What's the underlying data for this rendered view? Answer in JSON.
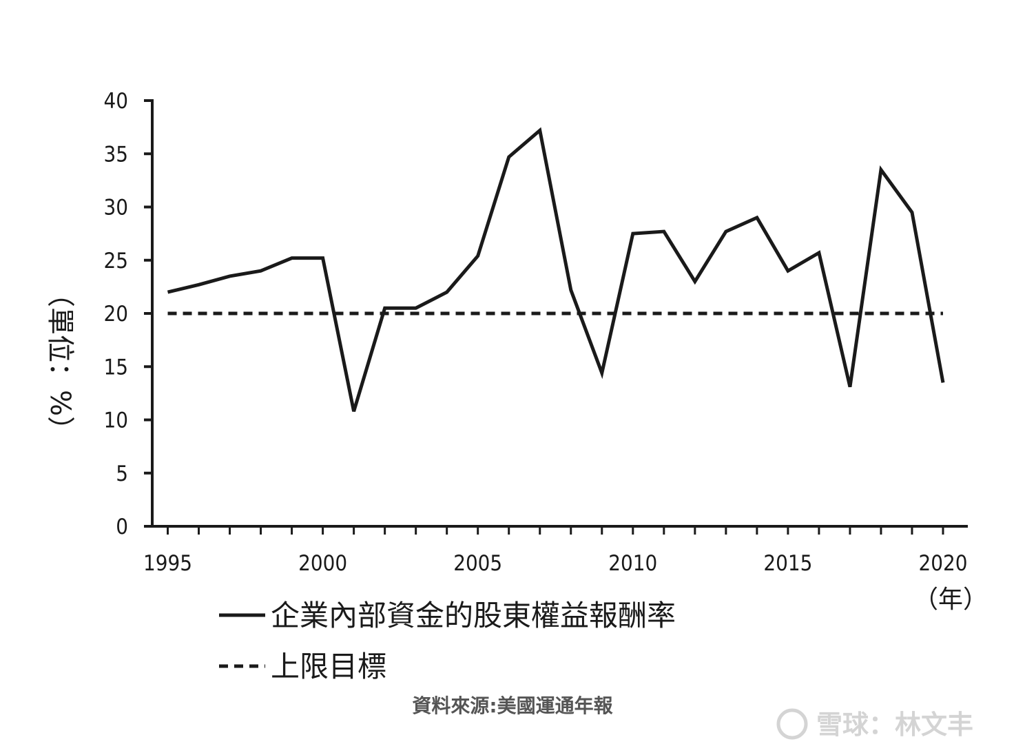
{
  "chart_data": {
    "type": "line",
    "x": [
      1995,
      1996,
      1997,
      1998,
      1999,
      2000,
      2001,
      2002,
      2003,
      2004,
      2005,
      2006,
      2007,
      2008,
      2009,
      2010,
      2011,
      2012,
      2013,
      2014,
      2015,
      2016,
      2017,
      2018,
      2019,
      2020
    ],
    "series": [
      {
        "name": "企業內部資金的股東權益報酬率",
        "style": "solid",
        "color": "#1a1a1a",
        "values": [
          22.0,
          22.7,
          23.5,
          24.0,
          25.2,
          25.2,
          10.8,
          20.5,
          20.5,
          22.0,
          25.4,
          34.7,
          37.2,
          22.2,
          14.4,
          27.5,
          27.7,
          23.0,
          27.7,
          29.0,
          24.0,
          25.7,
          13.1,
          33.5,
          29.5,
          13.5
        ]
      },
      {
        "name": "上限目標",
        "style": "dashed",
        "color": "#1a1a1a",
        "values": [
          20,
          20,
          20,
          20,
          20,
          20,
          20,
          20,
          20,
          20,
          20,
          20,
          20,
          20,
          20,
          20,
          20,
          20,
          20,
          20,
          20,
          20,
          20,
          20,
          20,
          20
        ]
      }
    ],
    "ylim": [
      0,
      40
    ],
    "yticks": [
      0,
      5,
      10,
      15,
      20,
      25,
      30,
      35,
      40
    ],
    "xticks": [
      1995,
      2000,
      2005,
      2010,
      2015,
      2020
    ],
    "xlim": [
      1994.5,
      2020.8
    ],
    "ylabel": "（單位：%）",
    "xunit": "（年）",
    "grid": false,
    "legend_position": "bottom-left"
  },
  "source": "資料來源:美國運通年報",
  "watermark": "雪球：林文丰"
}
